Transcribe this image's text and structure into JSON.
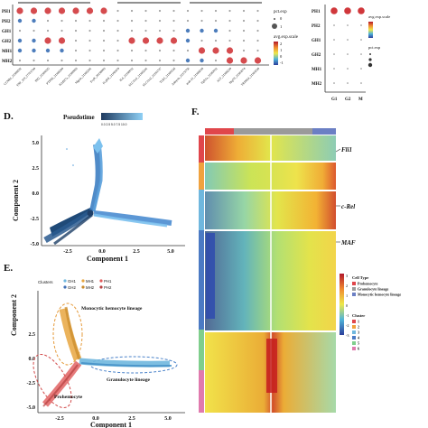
{
  "panels": {
    "D": {
      "letter": "D.",
      "legend_title": "Pseudotime",
      "legend_ticks": "0.0  2.5  5.0  7.5  10.0",
      "xlabel": "Component 1",
      "ylabel": "Component 2",
      "xticks": [
        "-2.5",
        "0.0",
        "2.5",
        "5.0"
      ],
      "yticks": [
        "5.0",
        "2.5",
        "0.0",
        "-2.5",
        "-5.0"
      ]
    },
    "E": {
      "letter": "E.",
      "legend_label": "Clusters",
      "legend_row1": [
        "GH1",
        "MH1",
        "PH1"
      ],
      "legend_row2": [
        "GH2",
        "MH2",
        "PH2"
      ],
      "xlabel": "Component 1",
      "ylabel": "Component 2",
      "xticks": [
        "-2.5",
        "0.0",
        "2.5",
        "5.0"
      ],
      "yticks": [
        "2.5",
        "0.0",
        "-2.5",
        "-5.0"
      ],
      "annotations": {
        "monocytic": "Monocytic hemocyte lineage",
        "granulocyte": "Granulocyte lineage",
        "prohemocyte": "Prohemocyte"
      }
    },
    "F": {
      "letter": "F.",
      "genes": [
        "Fli1",
        "c-Rel",
        "MAF"
      ],
      "celltype_title": "Cell Type",
      "celltypes": [
        "Prohemocyte",
        "Granulocyte lineage",
        "Monocytic hemocyte lineage"
      ],
      "celltype_colors": [
        "#e0464b",
        "#9a9a9a",
        "#6b7fc4"
      ],
      "cluster_title": "Cluster",
      "clusters": [
        "1",
        "2",
        "3",
        "4",
        "5",
        "6"
      ],
      "scale_ticks": [
        "3",
        "2",
        "1",
        "0",
        "-1",
        "-2",
        "-3"
      ]
    }
  },
  "top_left_dotplot": {
    "rows": [
      "PH1",
      "PH2",
      "GH1",
      "GH2",
      "MH1",
      "MH2"
    ],
    "columns": [
      "CCNB1_31388592",
      "TNF_119_27701799",
      "PH2_31389325",
      "PTPN6_31388309",
      "RAB27a_31380863",
      "Mgain_31385261",
      "FcγR_30198903",
      "FcγRII_31390479",
      "IL6_31390012",
      "SLC11a1_31385541",
      "SLC11a2_31391727",
      "TLR5_31389126",
      "Ankyrin_31375750",
      "mab-21_31386018",
      "Fgfr1a_31383011",
      "ALT_31386539",
      "Hsp70_31381074",
      "TRIM24_31381028"
    ],
    "legend_pct": "pct.exp",
    "legend_avg": "avg.exp.scale",
    "legend_pct_values": [
      "0",
      "1"
    ],
    "legend_avg_values": [
      "2",
      "1",
      "0",
      "-1"
    ]
  },
  "top_right_dotplot": {
    "rows": [
      "PH1",
      "PH2",
      "GH1",
      "GH2",
      "MH1",
      "MH2"
    ],
    "columns": [
      "G1",
      "G2",
      "M"
    ],
    "legend_avg": "avg.exp.scale",
    "legend_pct": "pct.exp"
  },
  "colors": {
    "high": "#d0373b",
    "low": "#3a6fb5",
    "granulocyte_points": "#6fb7de",
    "monocytic_points": "#e7a640",
    "prohemocyte_points": "#e05a5a"
  }
}
